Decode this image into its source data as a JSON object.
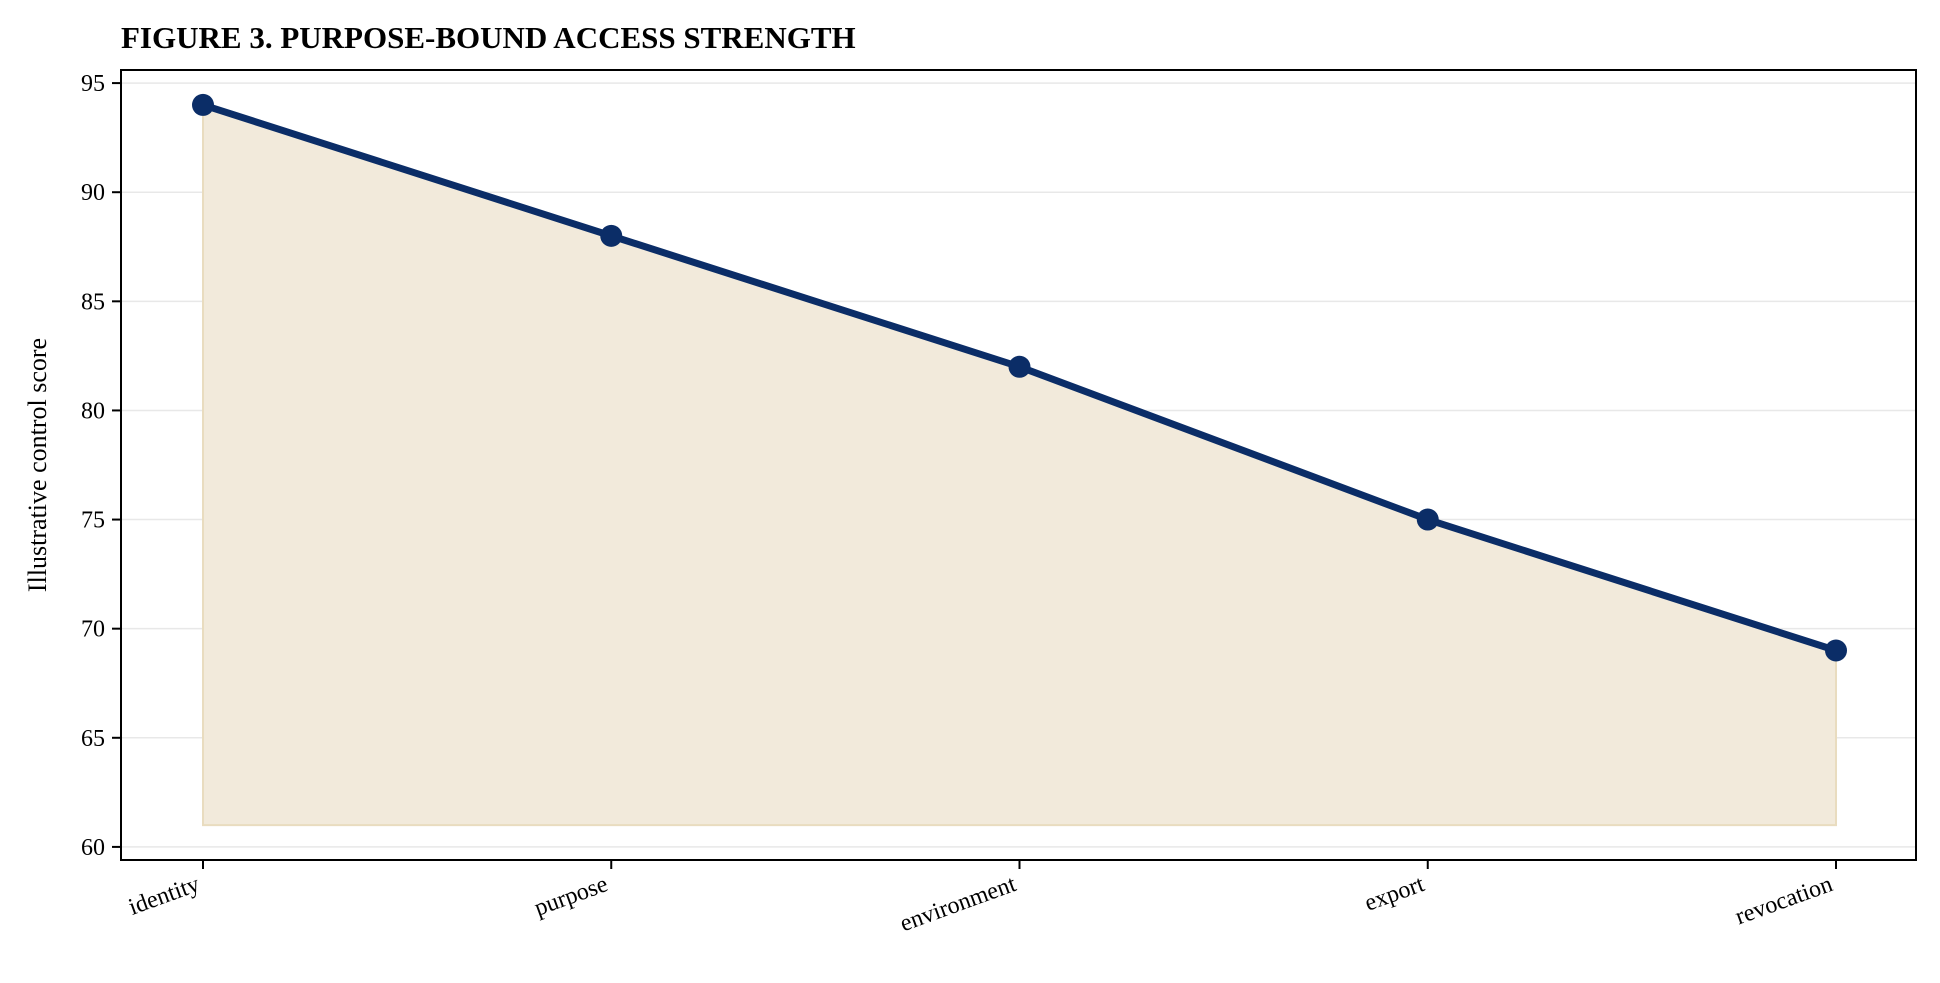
{
  "chart_data": {
    "type": "line",
    "title": "FIGURE 3. PURPOSE-BOUND ACCESS STRENGTH",
    "xlabel": "",
    "ylabel": "Illustrative control score",
    "categories": [
      "identity",
      "purpose",
      "environment",
      "export",
      "revocation"
    ],
    "series": [
      {
        "values": [
          94,
          88,
          82,
          75,
          69
        ]
      }
    ],
    "fill_baseline": 61,
    "ylim": [
      59.4,
      95.6
    ],
    "yticks": [
      60,
      65,
      70,
      75,
      80,
      85,
      90,
      95
    ],
    "grid": "horizontal",
    "colors": {
      "line": "#0b2d67",
      "fill": "#f2eadb",
      "fill_edge": "#e9dcbf",
      "grid": "#e8e8e8"
    }
  }
}
